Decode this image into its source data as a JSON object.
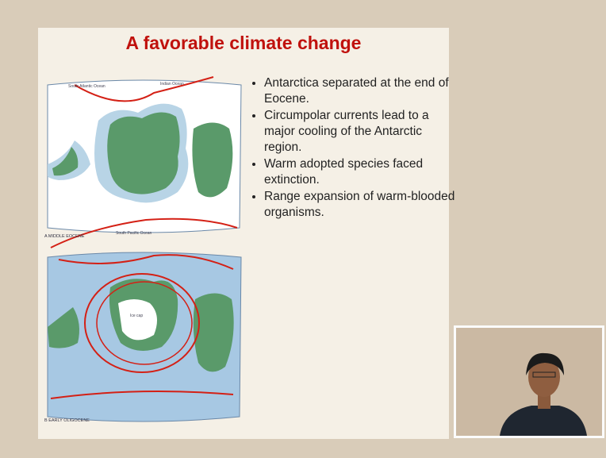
{
  "slide": {
    "title": "A favorable climate change",
    "bullets": [
      "Antarctica separated at the end of Eocene.",
      "Circumpolar currents lead to a major cooling of the Antarctic region.",
      "Warm adopted species faced extinction.",
      "Range expansion of warm-blooded organisms."
    ],
    "map_top": {
      "labels": [
        "South Atlantic Ocean",
        "Indian Ocean",
        "South Pacific Ocean"
      ],
      "caption": "A  MIDDLE EOCENE"
    },
    "map_bottom": {
      "labels": [
        "Ice cap"
      ],
      "caption": "B  EARLY OLIGOCENE"
    }
  }
}
